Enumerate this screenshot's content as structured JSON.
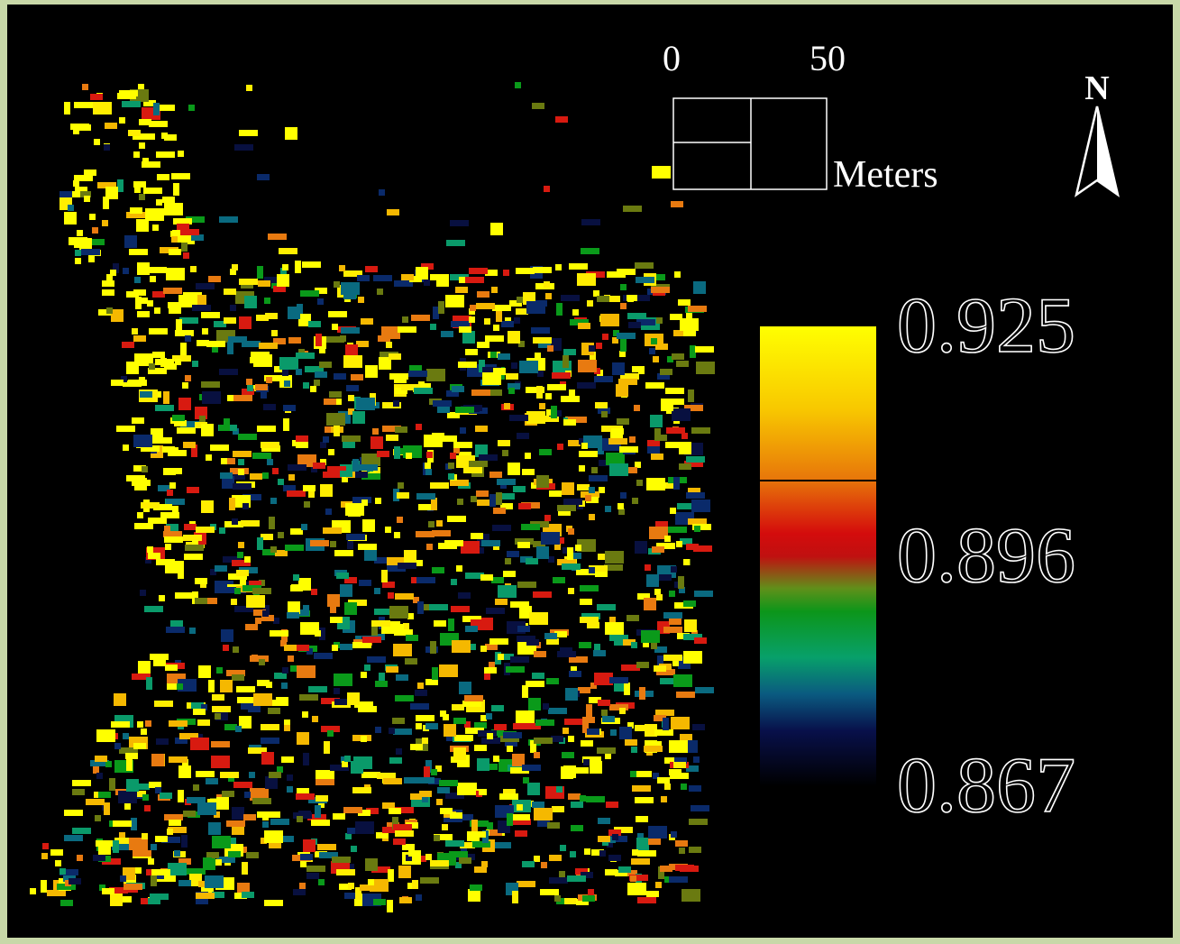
{
  "north_arrow": {
    "label": "N"
  },
  "scale_bar": {
    "labels": [
      0,
      50
    ],
    "unit": "Meters"
  },
  "legend": {
    "ticks": [
      0.925,
      0.896,
      0.867
    ]
  }
}
